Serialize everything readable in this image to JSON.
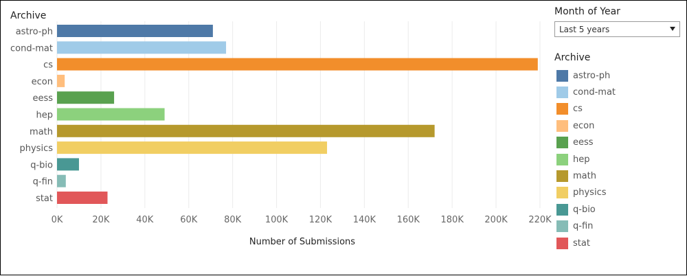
{
  "chart_data": {
    "type": "bar",
    "orientation": "horizontal",
    "ytitle": "Archive",
    "xlabel": "Number of Submissions",
    "categories": [
      "astro-ph",
      "cond-mat",
      "cs",
      "econ",
      "eess",
      "hep",
      "math",
      "physics",
      "q-bio",
      "q-fin",
      "stat"
    ],
    "values": [
      71000,
      77000,
      219000,
      3500,
      26000,
      49000,
      172000,
      123000,
      10000,
      4000,
      23000
    ],
    "colors": [
      "#4e79a7",
      "#a0cbe8",
      "#f28e2b",
      "#ffbe7d",
      "#59a14f",
      "#8cd17d",
      "#b6992d",
      "#f1ce63",
      "#499894",
      "#86bcb6",
      "#e15759"
    ],
    "xlim": [
      0,
      220000
    ],
    "xticks": [
      "0K",
      "20K",
      "40K",
      "60K",
      "80K",
      "100K",
      "120K",
      "140K",
      "160K",
      "180K",
      "200K",
      "220K"
    ],
    "grid": true,
    "legend_position": "right"
  },
  "filter": {
    "title": "Month of Year",
    "selected": "Last 5 years"
  },
  "legend": {
    "title": "Archive"
  }
}
